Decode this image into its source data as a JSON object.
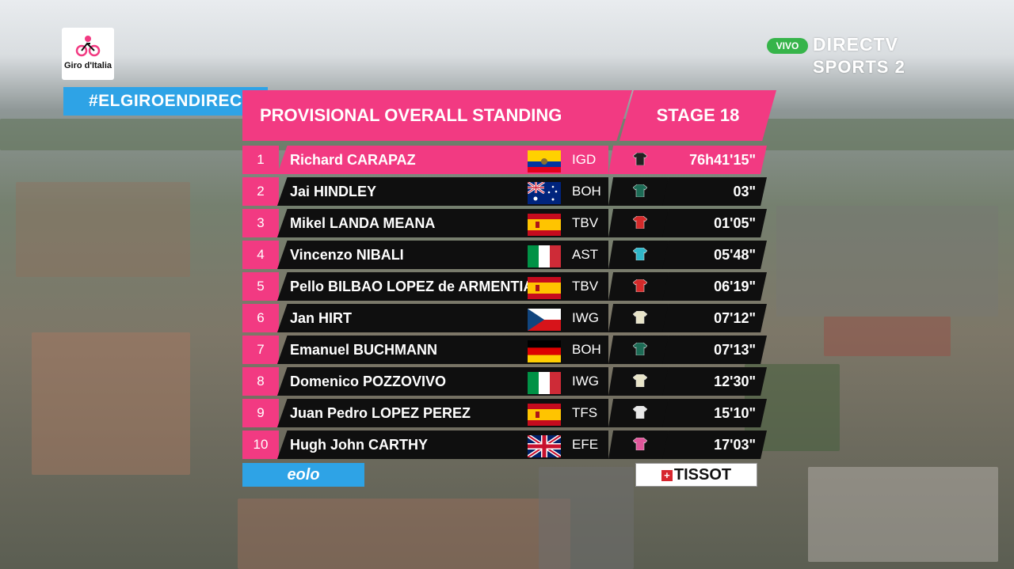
{
  "broadcast": {
    "event_logo_text": "Giro d'Italia",
    "hashtag": "#ELGIROENDIRECTV",
    "live_badge": "VIVO",
    "channel_line1": "DIRECTV",
    "channel_line2": "SPORTS 2"
  },
  "standing": {
    "title": "PROVISIONAL OVERALL STANDING",
    "stage": "STAGE 18",
    "rows": [
      {
        "pos": "1",
        "name": "Richard CARAPAZ",
        "flag": "ecuador",
        "team": "IGD",
        "jersey_color": "#222222",
        "time": "76h41'15\""
      },
      {
        "pos": "2",
        "name": "Jai HINDLEY",
        "flag": "australia",
        "team": "BOH",
        "jersey_color": "#1c6b55",
        "time": "03\""
      },
      {
        "pos": "3",
        "name": "Mikel LANDA MEANA",
        "flag": "spain",
        "team": "TBV",
        "jersey_color": "#d42a2a",
        "time": "01'05\""
      },
      {
        "pos": "4",
        "name": "Vincenzo NIBALI",
        "flag": "italy",
        "team": "AST",
        "jersey_color": "#2fb6c8",
        "time": "05'48\""
      },
      {
        "pos": "5",
        "name": "Pello BILBAO LOPEZ de ARMENTIA",
        "flag": "spain",
        "team": "TBV",
        "jersey_color": "#d42a2a",
        "time": "06'19\""
      },
      {
        "pos": "6",
        "name": "Jan HIRT",
        "flag": "czech",
        "team": "IWG",
        "jersey_color": "#e8e4c8",
        "time": "07'12\""
      },
      {
        "pos": "7",
        "name": "Emanuel BUCHMANN",
        "flag": "germany",
        "team": "BOH",
        "jersey_color": "#1c6b55",
        "time": "07'13\""
      },
      {
        "pos": "8",
        "name": "Domenico POZZOVIVO",
        "flag": "italy",
        "team": "IWG",
        "jersey_color": "#e8e4c8",
        "time": "12'30\""
      },
      {
        "pos": "9",
        "name": "Juan Pedro LOPEZ PEREZ",
        "flag": "spain",
        "team": "TFS",
        "jersey_color": "#e8e8e8",
        "time": "15'10\""
      },
      {
        "pos": "10",
        "name": "Hugh John CARTHY",
        "flag": "uk",
        "team": "EFE",
        "jersey_color": "#e0569a",
        "time": "17'03\""
      }
    ]
  },
  "sponsors": {
    "left": "eolo",
    "right": "TISSOT"
  },
  "colors": {
    "accent_pink": "#f23a82",
    "accent_blue": "#2ea3e6",
    "row_dark": "#0f0f0f",
    "live_green": "#36b44a"
  }
}
